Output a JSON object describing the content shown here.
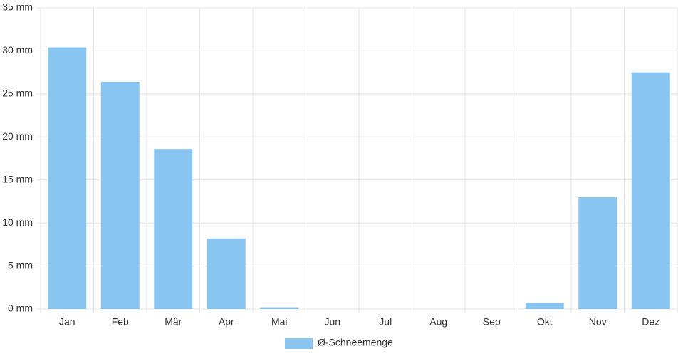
{
  "chart_data": {
    "type": "bar",
    "categories": [
      "Jan",
      "Feb",
      "Mär",
      "Apr",
      "Mai",
      "Jun",
      "Jul",
      "Aug",
      "Sep",
      "Okt",
      "Nov",
      "Dez"
    ],
    "series": [
      {
        "name": "Ø-Schneemenge",
        "color": "#88c5f0",
        "values": [
          30.4,
          26.4,
          18.6,
          8.2,
          0.2,
          0,
          0,
          0,
          0,
          0.7,
          13.0,
          27.5
        ]
      }
    ],
    "ylim": [
      0,
      35
    ],
    "yticks": [
      {
        "value": 0,
        "label": "0 mm"
      },
      {
        "value": 5,
        "label": "5 mm"
      },
      {
        "value": 10,
        "label": "10 mm"
      },
      {
        "value": 15,
        "label": "15 mm"
      },
      {
        "value": 20,
        "label": "20 mm"
      },
      {
        "value": 25,
        "label": "25 mm"
      },
      {
        "value": 30,
        "label": "30 mm"
      },
      {
        "value": 35,
        "label": "35 mm"
      }
    ],
    "grid": true,
    "legend": "bottom"
  }
}
